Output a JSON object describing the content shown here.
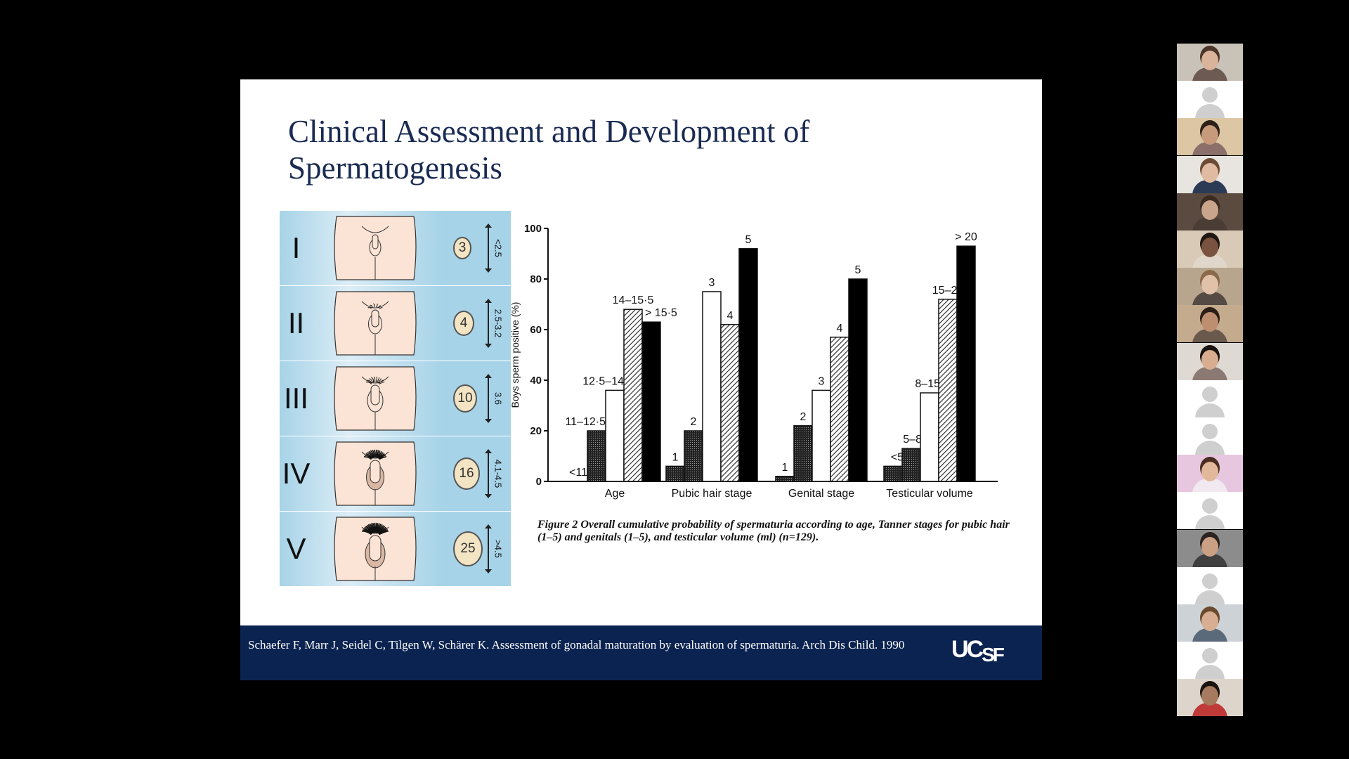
{
  "slide": {
    "title": "Clinical Assessment and Development of Spermatogenesis",
    "tanner_stages": [
      {
        "stage": "I",
        "volume": "3",
        "range": "<2.5"
      },
      {
        "stage": "II",
        "volume": "4",
        "range": "2.5-3.2"
      },
      {
        "stage": "III",
        "volume": "10",
        "range": "3.6"
      },
      {
        "stage": "IV",
        "volume": "16",
        "range": "4.1-4.5"
      },
      {
        "stage": "V",
        "volume": "25",
        "range": ">4.5"
      }
    ],
    "figure_caption": "Figure 2   Overall cumulative probability of spermaturia according to age, Tanner stages for pubic hair (1–5) and genitals (1–5), and testicular volume (ml) (n=129).",
    "citation": "Schaefer F, Marr J, Seidel C, Tilgen W, Schärer K. Assessment of gonadal maturation by evaluation of spermaturia. Arch Dis Child. 1990",
    "logo": "UCSF",
    "colors": {
      "title": "#1a2a52",
      "footer": "#0b2350",
      "tanner_light": "#dcedf6",
      "tanner_dark": "#a7d3e8",
      "skin": "#fbe3d5"
    }
  },
  "chart_data": {
    "type": "bar",
    "title": "",
    "ylabel": "Boys sperm positive (%)",
    "ylim": [
      0,
      100
    ],
    "yticks": [
      0,
      20,
      40,
      60,
      80,
      100
    ],
    "groups": [
      {
        "label": "Age",
        "bars": [
          {
            "value": 0,
            "label": "<11",
            "fill": "dots"
          },
          {
            "value": 20,
            "label": "11–12·5",
            "fill": "dots"
          },
          {
            "value": 36,
            "label": "12·5–14",
            "fill": "white"
          },
          {
            "value": 68,
            "label": "14–15·5",
            "fill": "hatch"
          },
          {
            "value": 63,
            "label": "> 15·5",
            "fill": "black"
          }
        ]
      },
      {
        "label": "Pubic hair stage",
        "bars": [
          {
            "value": 6,
            "label": "1",
            "fill": "dots"
          },
          {
            "value": 20,
            "label": "2",
            "fill": "dots"
          },
          {
            "value": 75,
            "label": "3",
            "fill": "white"
          },
          {
            "value": 62,
            "label": "4",
            "fill": "hatch"
          },
          {
            "value": 92,
            "label": "5",
            "fill": "black"
          }
        ]
      },
      {
        "label": "Genital stage",
        "bars": [
          {
            "value": 2,
            "label": "1",
            "fill": "dots"
          },
          {
            "value": 22,
            "label": "2",
            "fill": "dots"
          },
          {
            "value": 36,
            "label": "3",
            "fill": "white"
          },
          {
            "value": 57,
            "label": "4",
            "fill": "hatch"
          },
          {
            "value": 80,
            "label": "5",
            "fill": "black"
          }
        ]
      },
      {
        "label": "Testicular volume",
        "bars": [
          {
            "value": 6,
            "label": "<5",
            "fill": "dots"
          },
          {
            "value": 13,
            "label": "5–8",
            "fill": "dots"
          },
          {
            "value": 35,
            "label": "8–15",
            "fill": "white"
          },
          {
            "value": 72,
            "label": "15–20",
            "fill": "hatch"
          },
          {
            "value": 93,
            "label": "> 20",
            "fill": "black"
          }
        ]
      }
    ]
  },
  "participants": [
    {
      "kind": "video",
      "wall": "#c9c2b8",
      "skin": "#d9b49a",
      "hair": "#4b3527",
      "shirt": "#6d5b53"
    },
    {
      "kind": "avatar"
    },
    {
      "kind": "video",
      "wall": "#dcc6a4",
      "skin": "#c79a7c",
      "hair": "#2d2018",
      "shirt": "#8a6f6a"
    },
    {
      "kind": "video",
      "wall": "#e8e4df",
      "skin": "#e0bba2",
      "hair": "#6b4b33",
      "shirt": "#2b3a55"
    },
    {
      "kind": "video",
      "wall": "#5a4a40",
      "skin": "#c9a58c",
      "hair": "#3b2a20",
      "shirt": "#4a3d36"
    },
    {
      "kind": "video",
      "wall": "#d8cab6",
      "skin": "#7a5340",
      "hair": "#1f1712",
      "shirt": "#e0d6c9"
    },
    {
      "kind": "video",
      "wall": "#b8a58e",
      "skin": "#e1c1a8",
      "hair": "#8a6a4a",
      "shirt": "#554a44"
    },
    {
      "kind": "video",
      "wall": "#c4ab8d",
      "skin": "#bd8f70",
      "hair": "#2a1e16",
      "shirt": "#6a5a4e"
    },
    {
      "kind": "video",
      "wall": "#ded9d3",
      "skin": "#d9ae90",
      "hair": "#1a1410",
      "shirt": "#8b7a74"
    },
    {
      "kind": "avatar"
    },
    {
      "kind": "avatar"
    },
    {
      "kind": "video",
      "wall": "#e6c7df",
      "skin": "#e2b89a",
      "hair": "#4a2d20",
      "shirt": "#f2e8f0"
    },
    {
      "kind": "avatar"
    },
    {
      "kind": "video",
      "wall": "#8c8c8c",
      "skin": "#caa084",
      "hair": "#2b231f",
      "shirt": "#3f3f3f"
    },
    {
      "kind": "avatar"
    },
    {
      "kind": "video",
      "wall": "#cdd2d6",
      "skin": "#d7ae91",
      "hair": "#6a4a2e",
      "shirt": "#5a6a7a"
    },
    {
      "kind": "avatar"
    },
    {
      "kind": "video",
      "wall": "#ddd5cc",
      "skin": "#a57a5e",
      "hair": "#1a1310",
      "shirt": "#c03a3a"
    }
  ]
}
